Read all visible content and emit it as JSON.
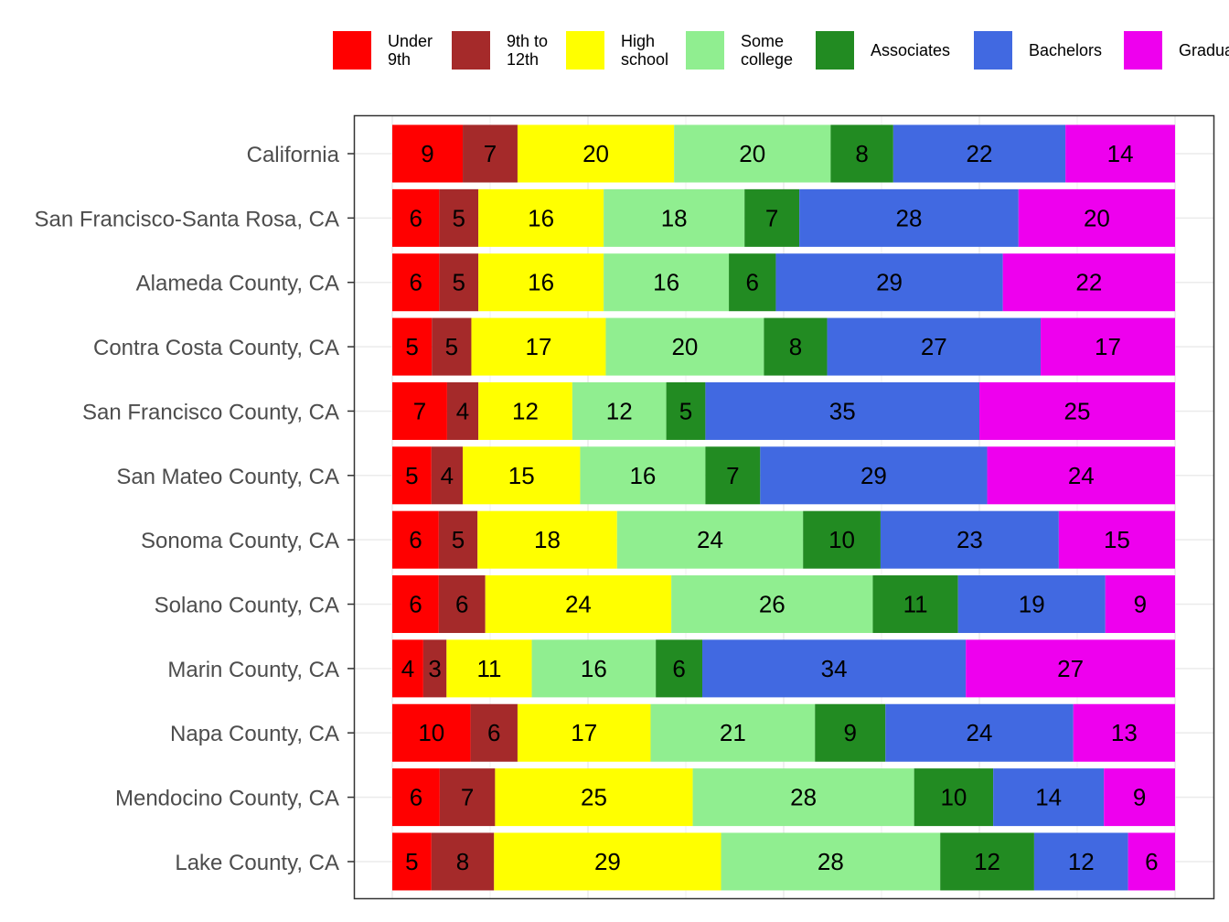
{
  "chart_data": {
    "type": "bar",
    "orientation": "horizontal",
    "stacked": true,
    "xlim": [
      0,
      100
    ],
    "grid": true,
    "legend_position": "top",
    "categories": [
      "California",
      "San Francisco-Santa Rosa, CA",
      "Alameda County, CA",
      "Contra Costa County, CA",
      "San Francisco County, CA",
      "San Mateo County, CA",
      "Sonoma County, CA",
      "Solano County, CA",
      "Marin County, CA",
      "Napa County, CA",
      "Mendocino County, CA",
      "Lake County, CA"
    ],
    "series": [
      {
        "name": "Under\n9th",
        "color": "#ff0000",
        "values": [
          9,
          6,
          6,
          5,
          7,
          5,
          6,
          6,
          4,
          10,
          6,
          5
        ]
      },
      {
        "name": "9th to\n12th",
        "color": "#a52a2a",
        "values": [
          7,
          5,
          5,
          5,
          4,
          4,
          5,
          6,
          3,
          6,
          7,
          8
        ]
      },
      {
        "name": "High\nschool",
        "color": "#ffff00",
        "values": [
          20,
          16,
          16,
          17,
          12,
          15,
          18,
          24,
          11,
          17,
          25,
          29
        ]
      },
      {
        "name": "Some\ncollege",
        "color": "#90ee90",
        "values": [
          20,
          18,
          16,
          20,
          12,
          16,
          24,
          26,
          16,
          21,
          28,
          28
        ]
      },
      {
        "name": "Associates",
        "color": "#228b22",
        "values": [
          8,
          7,
          6,
          8,
          5,
          7,
          10,
          11,
          6,
          9,
          10,
          12
        ]
      },
      {
        "name": "Bachelors",
        "color": "#4169e1",
        "values": [
          22,
          28,
          29,
          27,
          35,
          29,
          23,
          19,
          34,
          24,
          14,
          12
        ]
      },
      {
        "name": "Graduate",
        "color": "#ee00ee",
        "values": [
          14,
          20,
          22,
          17,
          25,
          24,
          15,
          9,
          27,
          13,
          9,
          6
        ]
      }
    ]
  }
}
